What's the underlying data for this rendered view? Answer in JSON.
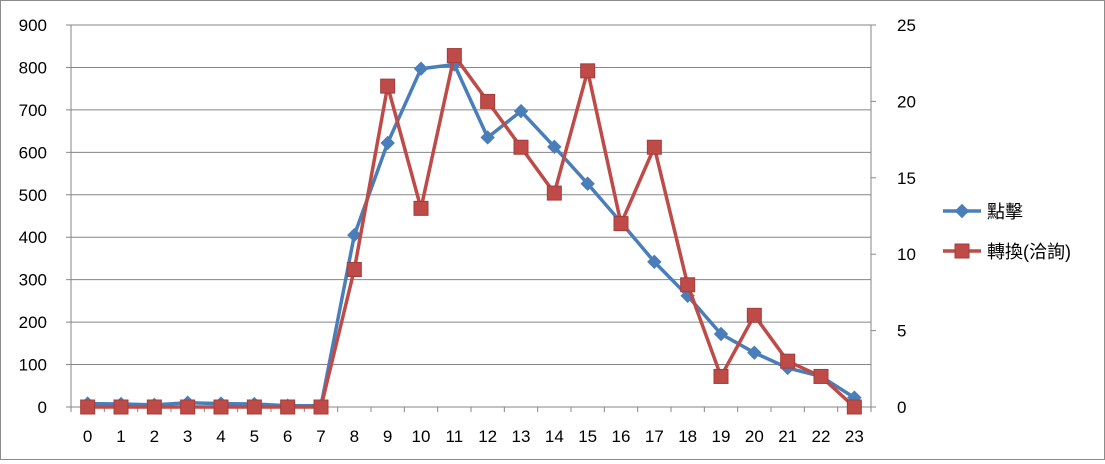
{
  "chart_data": {
    "type": "line",
    "x": [
      0,
      1,
      2,
      3,
      4,
      5,
      6,
      7,
      8,
      9,
      10,
      11,
      12,
      13,
      14,
      15,
      16,
      17,
      18,
      19,
      20,
      21,
      22,
      23
    ],
    "y_left_lim": [
      0,
      900
    ],
    "y_left_ticks": [
      0,
      100,
      200,
      300,
      400,
      500,
      600,
      700,
      800,
      900
    ],
    "y_right_lim": [
      0,
      25
    ],
    "y_right_ticks": [
      0,
      5,
      10,
      15,
      20,
      25
    ],
    "grid": true,
    "legend_position": "right",
    "series": [
      {
        "name": "點擊",
        "axis": "left",
        "marker": "diamond",
        "color": "#4a7ebb",
        "values": [
          8,
          7,
          5,
          10,
          8,
          7,
          3,
          3,
          405,
          622,
          797,
          807,
          635,
          697,
          613,
          526,
          435,
          342,
          262,
          172,
          128,
          92,
          72,
          22
        ]
      },
      {
        "name": "轉換(洽詢)",
        "axis": "right",
        "marker": "square",
        "color": "#be4b48",
        "values": [
          0,
          0,
          0,
          0,
          0,
          0,
          0,
          0,
          9,
          21,
          13,
          23,
          20,
          17,
          14,
          22,
          12,
          17,
          8,
          2,
          6,
          3,
          2,
          0
        ]
      }
    ]
  }
}
